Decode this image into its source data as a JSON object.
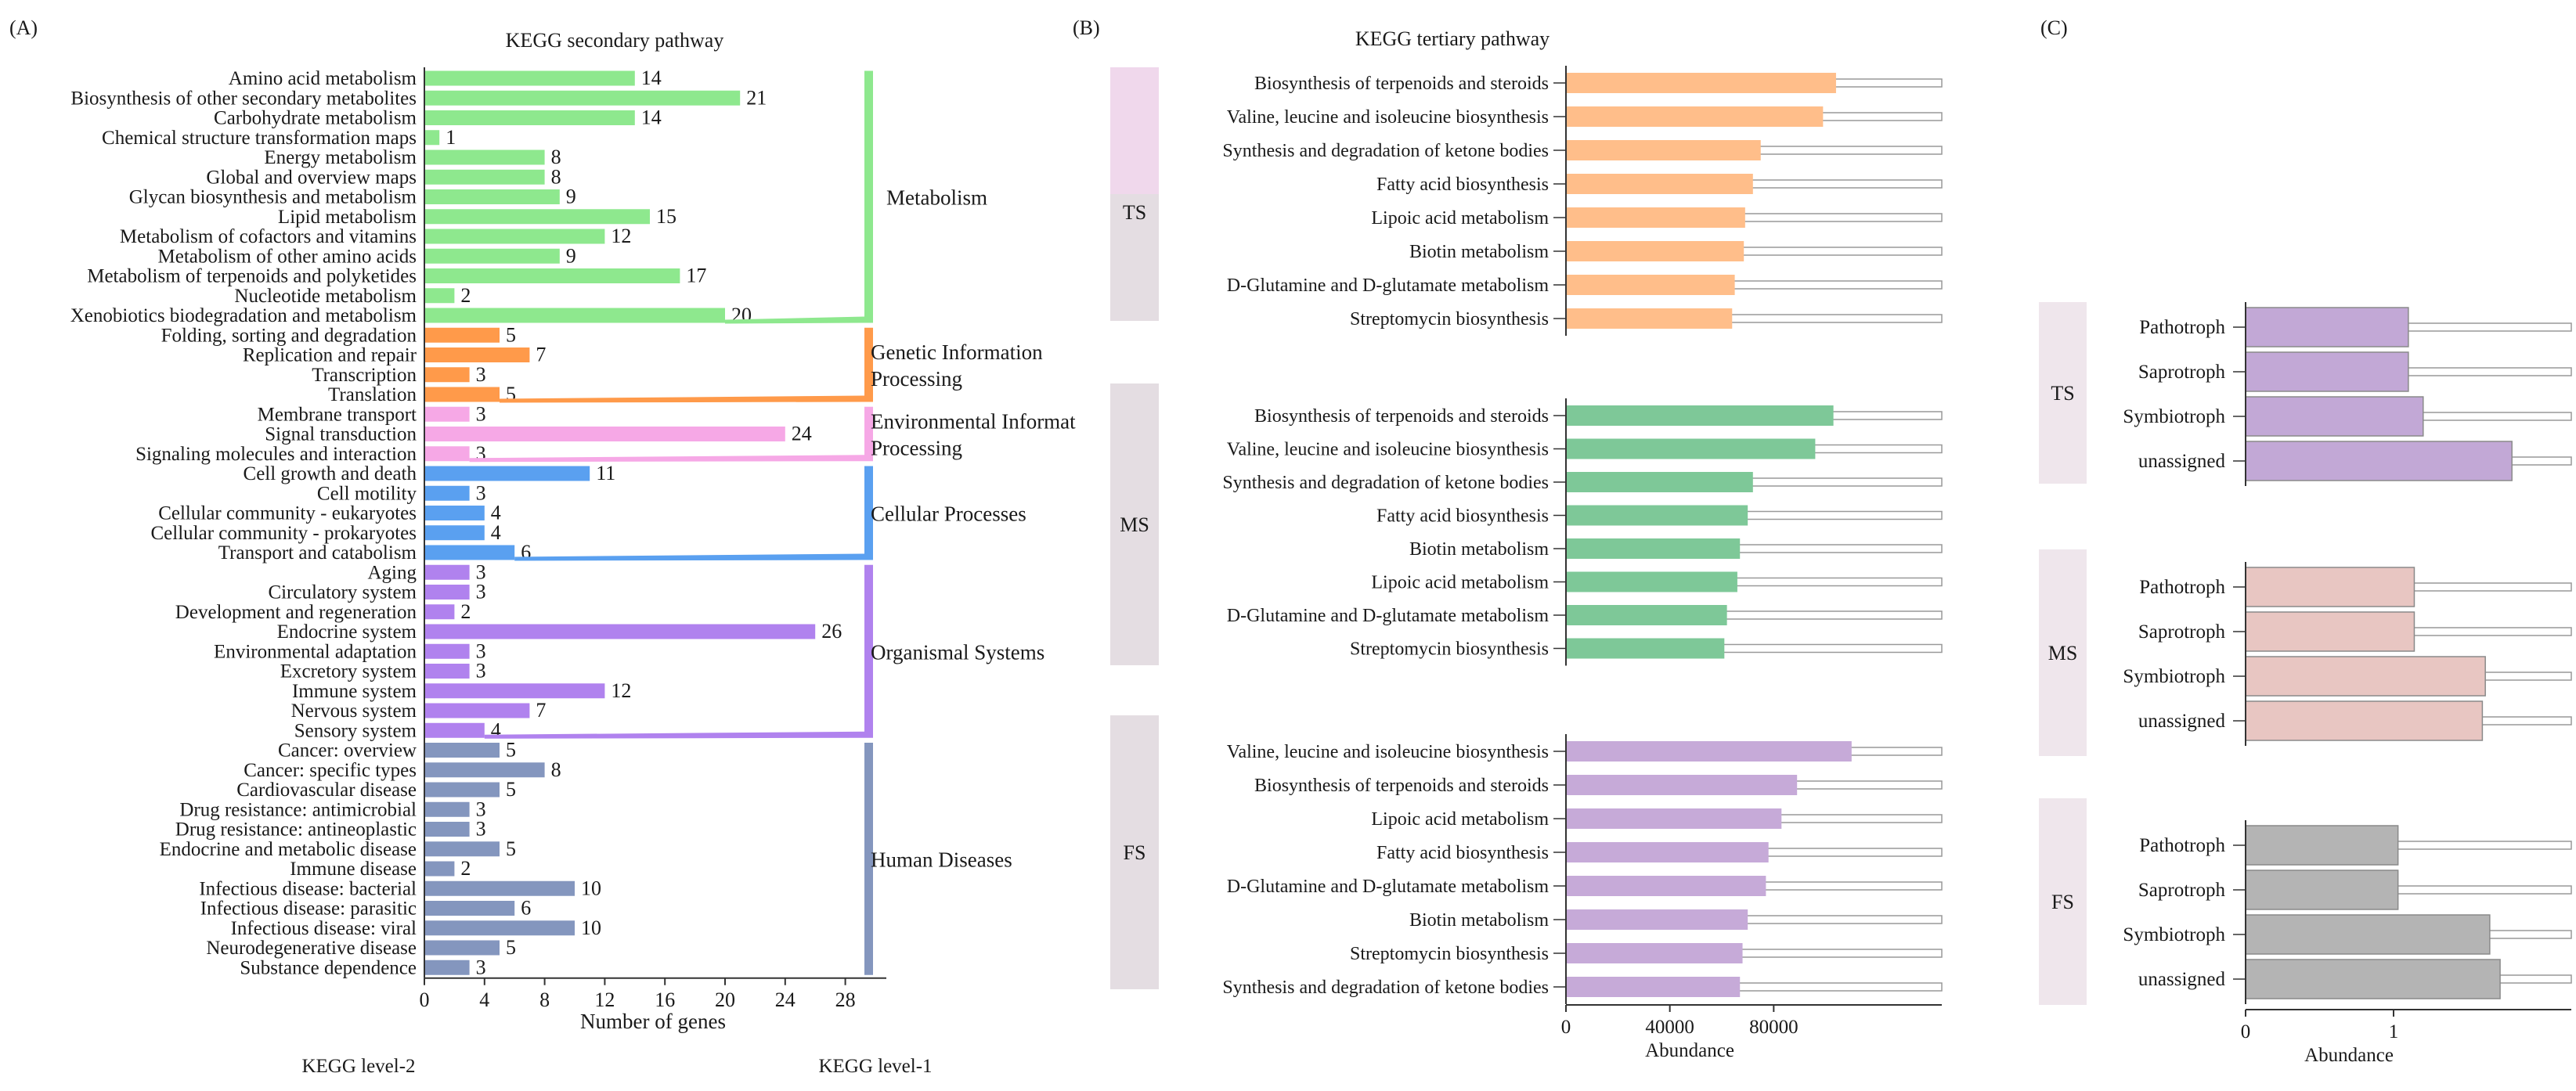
{
  "colors": {
    "metabolism": "#8ee88e",
    "genetic": "#ff9a4a",
    "environmental": "#f6a8e6",
    "cellular": "#5aa0f0",
    "organismal": "#b082ee",
    "human": "#8496be",
    "metabolism_text": "#1e9a4e",
    "genetic_text": "#f08a40",
    "environmental_text": "#f07ad8",
    "cellular_text": "#4a90e8",
    "organismal_text": "#a070e6",
    "human_text": "#7080a8",
    "b_ts": "#ffbe8a",
    "b_ms": "#7ec898",
    "b_fs": "#c6aad8",
    "c_ts": "#c2a8d6",
    "c_ms": "#e8c6c2",
    "c_fs": "#b4b4b4",
    "group_box": "#e4dde2",
    "group_box_alt": "#f0d8ec",
    "track": "#e6e6e6",
    "axis": "#333333"
  },
  "panel_a": {
    "label": "(A)",
    "title": "KEGG secondary pathway",
    "xlabel": "Number of genes",
    "footer_left": "KEGG level-2",
    "footer_right": "KEGG level-1"
  },
  "panel_b": {
    "label": "(B)",
    "title": "KEGG tertiary pathway",
    "xlabel": "Abundance"
  },
  "panel_c": {
    "label": "(C)",
    "xlabel": "Abundance"
  },
  "chart_data": [
    {
      "id": "A",
      "type": "bar",
      "orientation": "horizontal",
      "title": "KEGG secondary pathway",
      "xlabel": "Number of genes",
      "xlim": [
        0,
        30
      ],
      "xticks": [
        0,
        4,
        8,
        12,
        16,
        20,
        24,
        28
      ],
      "groups": [
        {
          "name": "Metabolism",
          "lines": [
            "Metabolism"
          ],
          "color_key": "metabolism",
          "categories": [
            {
              "label": "Amino acid metabolism",
              "value": 14
            },
            {
              "label": "Biosynthesis of other secondary metabolites",
              "value": 21
            },
            {
              "label": "Carbohydrate metabolism",
              "value": 14
            },
            {
              "label": "Chemical structure transformation maps",
              "value": 1
            },
            {
              "label": "Energy metabolism",
              "value": 8
            },
            {
              "label": "Global and overview maps",
              "value": 8
            },
            {
              "label": "Glycan biosynthesis and metabolism",
              "value": 9
            },
            {
              "label": "Lipid metabolism",
              "value": 15
            },
            {
              "label": "Metabolism of cofactors and vitamins",
              "value": 12
            },
            {
              "label": "Metabolism of other amino acids",
              "value": 9
            },
            {
              "label": "Metabolism of terpenoids and polyketides",
              "value": 17
            },
            {
              "label": "Nucleotide metabolism",
              "value": 2
            },
            {
              "label": "Xenobiotics biodegradation and metabolism",
              "value": 20
            }
          ]
        },
        {
          "name": "Genetic Information Processing",
          "lines": [
            "Genetic Information",
            "Processing"
          ],
          "color_key": "genetic",
          "categories": [
            {
              "label": "Folding, sorting and degradation",
              "value": 5
            },
            {
              "label": "Replication and repair",
              "value": 7
            },
            {
              "label": "Transcription",
              "value": 3
            },
            {
              "label": "Translation",
              "value": 5
            }
          ]
        },
        {
          "name": "Environmental Information Processing",
          "lines": [
            "Environmental Informat",
            "Processing"
          ],
          "color_key": "environmental",
          "categories": [
            {
              "label": "Membrane transport",
              "value": 3
            },
            {
              "label": "Signal transduction",
              "value": 24
            },
            {
              "label": "Signaling molecules and interaction",
              "value": 3
            }
          ]
        },
        {
          "name": "Cellular Processes",
          "lines": [
            "Cellular Processes"
          ],
          "color_key": "cellular",
          "categories": [
            {
              "label": "Cell growth and death",
              "value": 11
            },
            {
              "label": "Cell motility",
              "value": 3
            },
            {
              "label": "Cellular community - eukaryotes",
              "value": 4
            },
            {
              "label": "Cellular community - prokaryotes",
              "value": 4
            },
            {
              "label": "Transport and catabolism",
              "value": 6
            }
          ]
        },
        {
          "name": "Organismal Systems",
          "lines": [
            "Organismal Systems"
          ],
          "color_key": "organismal",
          "categories": [
            {
              "label": "Aging",
              "value": 3
            },
            {
              "label": "Circulatory system",
              "value": 3
            },
            {
              "label": "Development and regeneration",
              "value": 2
            },
            {
              "label": "Endocrine system",
              "value": 26
            },
            {
              "label": "Environmental adaptation",
              "value": 3
            },
            {
              "label": "Excretory system",
              "value": 3
            },
            {
              "label": "Immune system",
              "value": 12
            },
            {
              "label": "Nervous system",
              "value": 7
            },
            {
              "label": "Sensory system",
              "value": 4
            }
          ]
        },
        {
          "name": "Human Diseases",
          "lines": [
            "Human Diseases"
          ],
          "color_key": "human",
          "categories": [
            {
              "label": "Cancer: overview",
              "value": 5
            },
            {
              "label": "Cancer: specific types",
              "value": 8
            },
            {
              "label": "Cardiovascular disease",
              "value": 5
            },
            {
              "label": "Drug resistance: antimicrobial",
              "value": 3
            },
            {
              "label": "Drug resistance: antineoplastic",
              "value": 3
            },
            {
              "label": "Endocrine and metabolic disease",
              "value": 5
            },
            {
              "label": "Immune disease",
              "value": 2
            },
            {
              "label": "Infectious disease: bacterial",
              "value": 10
            },
            {
              "label": "Infectious disease: parasitic",
              "value": 6
            },
            {
              "label": "Infectious disease: viral",
              "value": 10
            },
            {
              "label": "Neurodegenerative disease",
              "value": 5
            },
            {
              "label": "Substance dependence",
              "value": 3
            }
          ]
        }
      ]
    },
    {
      "id": "B",
      "type": "bar",
      "orientation": "horizontal",
      "title": "KEGG tertiary pathway",
      "xlabel": "Abundance",
      "xlim": [
        0,
        130000
      ],
      "xticks": [
        0,
        40000,
        80000
      ],
      "tick_labels": [
        "0",
        "40000",
        "80000"
      ],
      "groups": [
        {
          "name": "TS",
          "color_key": "b_ts",
          "categories": [
            {
              "label": "Biosynthesis of terpenoids and steroids",
              "value": 104000
            },
            {
              "label": "Valine, leucine and isoleucine biosynthesis",
              "value": 99000
            },
            {
              "label": "Synthesis and degradation of ketone bodies",
              "value": 75000
            },
            {
              "label": "Fatty acid biosynthesis",
              "value": 72000
            },
            {
              "label": "Lipoic acid metabolism",
              "value": 69000
            },
            {
              "label": "Biotin metabolism",
              "value": 68500
            },
            {
              "label": "D-Glutamine and D-glutamate metabolism",
              "value": 65000
            },
            {
              "label": "Streptomycin biosynthesis",
              "value": 64000
            }
          ]
        },
        {
          "name": "MS",
          "color_key": "b_ms",
          "categories": [
            {
              "label": "Biosynthesis of terpenoids and steroids",
              "value": 103000
            },
            {
              "label": "Valine, leucine and isoleucine biosynthesis",
              "value": 96000
            },
            {
              "label": "Synthesis and degradation of ketone bodies",
              "value": 72000
            },
            {
              "label": "Fatty acid biosynthesis",
              "value": 70000
            },
            {
              "label": "Biotin metabolism",
              "value": 67000
            },
            {
              "label": "Lipoic acid metabolism",
              "value": 66000
            },
            {
              "label": "D-Glutamine and D-glutamate metabolism",
              "value": 62000
            },
            {
              "label": "Streptomycin biosynthesis",
              "value": 61000
            }
          ]
        },
        {
          "name": "FS",
          "color_key": "b_fs",
          "categories": [
            {
              "label": "Valine, leucine and isoleucine biosynthesis",
              "value": 110000
            },
            {
              "label": "Biosynthesis of terpenoids and steroids",
              "value": 89000
            },
            {
              "label": "Lipoic acid metabolism",
              "value": 83000
            },
            {
              "label": "Fatty acid biosynthesis",
              "value": 78000
            },
            {
              "label": "D-Glutamine and D-glutamate metabolism",
              "value": 77000
            },
            {
              "label": "Biotin metabolism",
              "value": 70000
            },
            {
              "label": "Streptomycin biosynthesis",
              "value": 68000
            },
            {
              "label": "Synthesis and degradation of ketone bodies",
              "value": 67000
            }
          ]
        }
      ]
    },
    {
      "id": "C",
      "type": "bar",
      "orientation": "horizontal",
      "xlabel": "Abundance",
      "xlim": [
        0,
        2.15
      ],
      "xticks": [
        0,
        1
      ],
      "tick_labels": [
        "0",
        "1"
      ],
      "groups": [
        {
          "name": "TS",
          "color_key": "c_ts",
          "categories": [
            {
              "label": "Pathotroph",
              "value": 1.1
            },
            {
              "label": "Saprotroph",
              "value": 1.1
            },
            {
              "label": "Symbiotroph",
              "value": 1.2
            },
            {
              "label": "unassigned",
              "value": 1.8
            }
          ]
        },
        {
          "name": "MS",
          "color_key": "c_ms",
          "categories": [
            {
              "label": "Pathotroph",
              "value": 1.14
            },
            {
              "label": "Saprotroph",
              "value": 1.14
            },
            {
              "label": "Symbiotroph",
              "value": 1.62
            },
            {
              "label": "unassigned",
              "value": 1.6
            }
          ]
        },
        {
          "name": "FS",
          "color_key": "c_fs",
          "categories": [
            {
              "label": "Pathotroph",
              "value": 1.03
            },
            {
              "label": "Saprotroph",
              "value": 1.03
            },
            {
              "label": "Symbiotroph",
              "value": 1.65
            },
            {
              "label": "unassigned",
              "value": 1.72
            }
          ]
        }
      ]
    }
  ]
}
